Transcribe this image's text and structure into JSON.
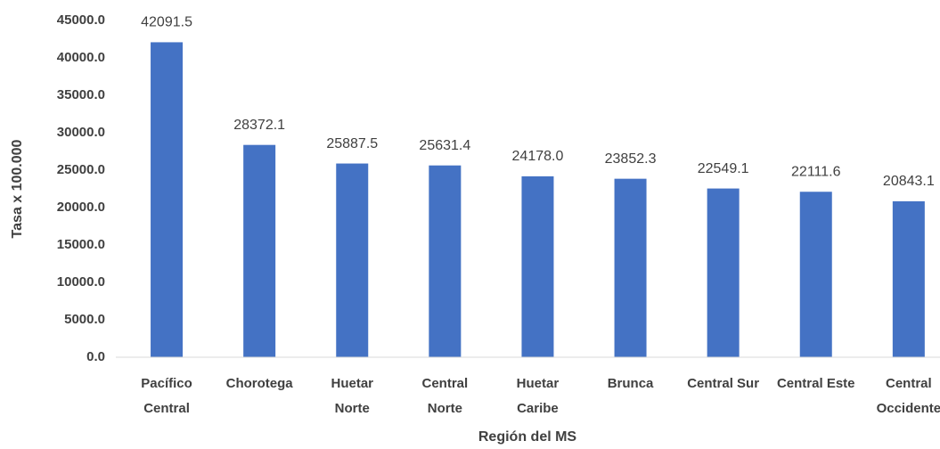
{
  "chart_data": {
    "type": "bar",
    "x_label": "Región del MS",
    "y_label": "Tasa x 100.000",
    "categories": [
      "Pacífico Central",
      "Chorotega",
      "Huetar Norte",
      "Central Norte",
      "Huetar Caribe",
      "Brunca",
      "Central Sur",
      "Central Este",
      "Central Occidente"
    ],
    "values": [
      42091.5,
      28372.1,
      25887.5,
      25631.4,
      24178.0,
      23852.3,
      22549.1,
      22111.6,
      20843.1
    ],
    "value_labels": [
      "42091.5",
      "28372.1",
      "25887.5",
      "25631.4",
      "24178.0",
      "23852.3",
      "22549.1",
      "22111.6",
      "20843.1"
    ],
    "color": "#4472c4",
    "ylim": [
      0,
      45000
    ],
    "yticks": [
      {
        "value": 0,
        "label": "0.0"
      },
      {
        "value": 5000,
        "label": "5000.0"
      },
      {
        "value": 10000,
        "label": "10000.0"
      },
      {
        "value": 15000,
        "label": "15000.0"
      },
      {
        "value": 20000,
        "label": "20000.0"
      },
      {
        "value": 25000,
        "label": "25000.0"
      },
      {
        "value": 30000,
        "label": "30000.0"
      },
      {
        "value": 35000,
        "label": "35000.0"
      },
      {
        "value": 40000,
        "label": "40000.0"
      },
      {
        "value": 45000,
        "label": "45000.0"
      }
    ],
    "grid": false
  }
}
